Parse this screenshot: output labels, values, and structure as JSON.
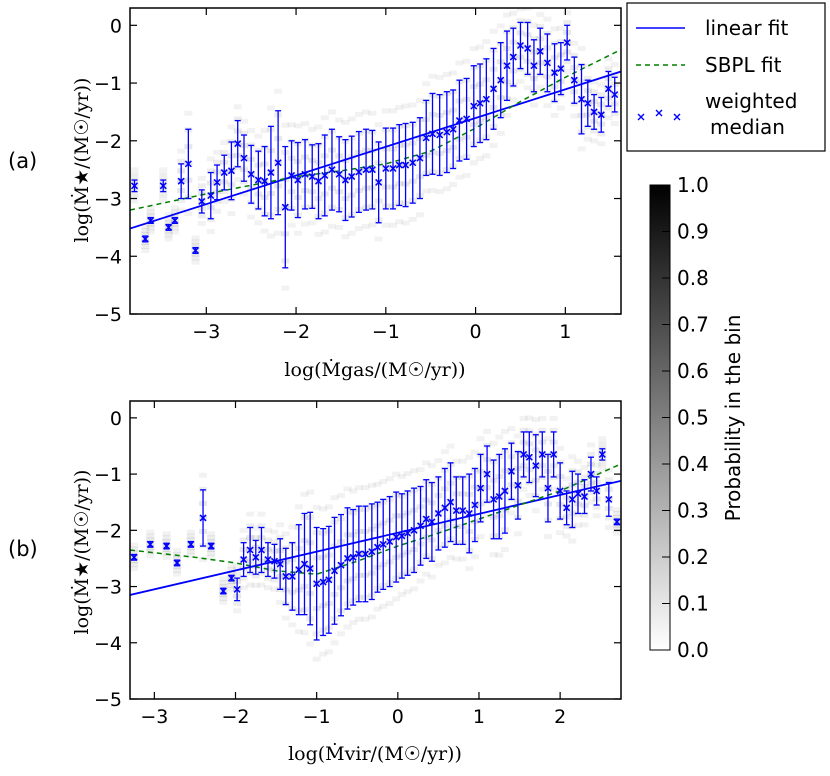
{
  "colors": {
    "fit": "#0000ff",
    "sbpl": "#008000",
    "median": "#0000ff",
    "frame": "#000000"
  },
  "legend": {
    "items": [
      {
        "label": "linear fit",
        "style": "solid"
      },
      {
        "label": "SBPL fit",
        "style": "dashed"
      },
      {
        "label_line1": "weighted",
        "label_line2": "median",
        "style": "markers"
      }
    ]
  },
  "colorbar": {
    "label": "Probability in the bin",
    "ticks": [
      "0.0",
      "0.1",
      "0.2",
      "0.3",
      "0.4",
      "0.5",
      "0.6",
      "0.7",
      "0.8",
      "0.9",
      "1.0"
    ],
    "range": [
      0,
      1
    ]
  },
  "chart_data": [
    {
      "panel_label": "(a)",
      "type": "scatter",
      "xlabel": "log(Ṁgas/(M☉/yr))",
      "ylabel": "log(Ṁ★/(M☉/yr))",
      "xlim": [
        -3.85,
        1.62
      ],
      "ylim": [
        -5,
        0.3
      ],
      "xticks": [
        -3,
        -2,
        -1,
        0,
        1
      ],
      "xtick_labels": [
        "−3",
        "−2",
        "−1",
        "0",
        "1"
      ],
      "yticks": [
        -5,
        -4,
        -3,
        -2,
        -1,
        0
      ],
      "ytick_labels": [
        "−5",
        "−4",
        "−3",
        "−2",
        "−1",
        "0"
      ],
      "linear_fit": {
        "x": [
          -3.85,
          1.62
        ],
        "y": [
          -3.52,
          -0.8
        ]
      },
      "sbpl_fit": {
        "x": [
          -3.85,
          -3.0,
          -2.0,
          -1.5,
          -1.0,
          -0.5,
          0.0,
          0.5,
          1.0,
          1.62
        ],
        "y": [
          -3.2,
          -2.92,
          -2.62,
          -2.52,
          -2.4,
          -2.18,
          -1.78,
          -1.32,
          -0.9,
          -0.42
        ]
      },
      "median": {
        "x": [
          -3.8,
          -3.68,
          -3.62,
          -3.48,
          -3.42,
          -3.35,
          -3.28,
          -3.2,
          -3.12,
          -3.05,
          -2.95,
          -2.88,
          -2.8,
          -2.72,
          -2.65,
          -2.58,
          -2.5,
          -2.42,
          -2.35,
          -2.28,
          -2.2,
          -2.12,
          -2.05,
          -1.98,
          -1.9,
          -1.82,
          -1.75,
          -1.68,
          -1.6,
          -1.52,
          -1.45,
          -1.38,
          -1.3,
          -1.22,
          -1.15,
          -1.08,
          -1.0,
          -0.92,
          -0.85,
          -0.78,
          -0.7,
          -0.62,
          -0.55,
          -0.48,
          -0.4,
          -0.32,
          -0.25,
          -0.18,
          -0.1,
          -0.02,
          0.05,
          0.12,
          0.2,
          0.28,
          0.35,
          0.42,
          0.5,
          0.58,
          0.65,
          0.72,
          0.8,
          0.88,
          0.95,
          1.02,
          1.1,
          1.18,
          1.25,
          1.32,
          1.4,
          1.48,
          1.55
        ],
        "y": [
          -2.78,
          -3.7,
          -3.38,
          -2.78,
          -3.5,
          -3.38,
          -2.7,
          -2.4,
          -3.9,
          -3.05,
          -2.95,
          -2.72,
          -2.55,
          -2.52,
          -2.05,
          -2.3,
          -2.58,
          -2.68,
          -2.7,
          -2.55,
          -2.38,
          -3.15,
          -2.6,
          -2.68,
          -2.58,
          -2.62,
          -2.7,
          -2.6,
          -2.5,
          -2.58,
          -2.68,
          -2.62,
          -2.54,
          -2.5,
          -2.5,
          -2.72,
          -2.48,
          -2.48,
          -2.42,
          -2.42,
          -2.38,
          -2.3,
          -1.95,
          -1.88,
          -1.9,
          -1.85,
          -1.8,
          -1.65,
          -1.62,
          -1.4,
          -1.35,
          -1.28,
          -1.1,
          -0.95,
          -0.7,
          -0.55,
          -0.35,
          -0.4,
          -0.7,
          -0.45,
          -0.65,
          -0.82,
          -0.75,
          -0.3,
          -0.95,
          -1.28,
          -1.35,
          -1.5,
          -1.55,
          -1.1,
          -1.2
        ],
        "err": [
          0.1,
          0.05,
          0.05,
          0.1,
          0.05,
          0.05,
          0.3,
          0.6,
          0.05,
          0.2,
          0.4,
          0.3,
          0.3,
          0.5,
          0.4,
          0.4,
          0.5,
          0.5,
          0.6,
          0.8,
          0.9,
          1.05,
          0.6,
          0.65,
          0.6,
          0.55,
          0.65,
          0.7,
          0.7,
          0.65,
          0.7,
          0.7,
          0.7,
          0.7,
          0.68,
          0.7,
          0.7,
          0.7,
          0.7,
          0.72,
          0.7,
          0.7,
          0.65,
          0.7,
          0.7,
          0.7,
          0.68,
          0.7,
          0.7,
          0.7,
          0.68,
          0.7,
          0.7,
          0.65,
          0.6,
          0.5,
          0.4,
          0.45,
          0.45,
          0.4,
          0.5,
          0.5,
          0.45,
          0.3,
          0.4,
          0.6,
          0.4,
          0.3,
          0.3,
          0.3,
          0.3
        ]
      }
    },
    {
      "panel_label": "(b)",
      "type": "scatter",
      "xlabel": "log(Ṁvir/(M☉/yr))",
      "ylabel": "log(Ṁ★/(M☉/yr))",
      "xlim": [
        -3.3,
        2.75
      ],
      "ylim": [
        -5,
        0.3
      ],
      "xticks": [
        -3,
        -2,
        -1,
        0,
        1,
        2
      ],
      "xtick_labels": [
        "−3",
        "−2",
        "−1",
        "0",
        "1",
        "2"
      ],
      "yticks": [
        -5,
        -4,
        -3,
        -2,
        -1,
        0
      ],
      "ytick_labels": [
        "−5",
        "−4",
        "−3",
        "−2",
        "−1",
        "0"
      ],
      "linear_fit": {
        "x": [
          -3.3,
          2.75
        ],
        "y": [
          -3.15,
          -1.12
        ]
      },
      "sbpl_fit": {
        "x": [
          -3.3,
          -2.5,
          -2.0,
          -1.5,
          -1.0,
          -0.5,
          0.0,
          0.5,
          1.0,
          1.5,
          2.0,
          2.75
        ],
        "y": [
          -2.35,
          -2.48,
          -2.58,
          -2.72,
          -2.78,
          -2.55,
          -2.28,
          -2.05,
          -1.8,
          -1.55,
          -1.3,
          -0.82
        ]
      },
      "median": {
        "x": [
          -3.25,
          -3.05,
          -2.85,
          -2.72,
          -2.55,
          -2.4,
          -2.3,
          -2.15,
          -2.05,
          -1.98,
          -1.9,
          -1.82,
          -1.75,
          -1.68,
          -1.6,
          -1.52,
          -1.45,
          -1.38,
          -1.3,
          -1.22,
          -1.15,
          -1.08,
          -1.0,
          -0.92,
          -0.85,
          -0.78,
          -0.7,
          -0.62,
          -0.55,
          -0.48,
          -0.4,
          -0.32,
          -0.25,
          -0.18,
          -0.1,
          -0.02,
          0.05,
          0.12,
          0.2,
          0.28,
          0.35,
          0.42,
          0.5,
          0.58,
          0.65,
          0.72,
          0.8,
          0.88,
          0.95,
          1.02,
          1.1,
          1.18,
          1.25,
          1.32,
          1.4,
          1.48,
          1.55,
          1.62,
          1.7,
          1.78,
          1.85,
          1.92,
          2.0,
          2.08,
          2.15,
          2.22,
          2.3,
          2.38,
          2.45,
          2.52,
          2.6,
          2.7
        ],
        "y": [
          -2.48,
          -2.25,
          -2.28,
          -2.58,
          -2.25,
          -1.78,
          -2.28,
          -3.08,
          -2.85,
          -3.05,
          -2.52,
          -2.35,
          -2.48,
          -2.35,
          -2.52,
          -2.55,
          -2.6,
          -2.82,
          -2.82,
          -2.7,
          -2.6,
          -2.68,
          -2.95,
          -2.92,
          -2.88,
          -2.72,
          -2.62,
          -2.5,
          -2.48,
          -2.42,
          -2.42,
          -2.38,
          -2.3,
          -2.25,
          -2.2,
          -2.12,
          -2.1,
          -2.05,
          -2.0,
          -1.92,
          -1.8,
          -1.85,
          -1.7,
          -1.6,
          -1.5,
          -1.65,
          -1.65,
          -1.7,
          -1.55,
          -1.25,
          -1.0,
          -1.45,
          -1.4,
          -1.3,
          -0.95,
          -1.2,
          -0.65,
          -0.7,
          -0.85,
          -0.65,
          -1.25,
          -0.65,
          -1.3,
          -1.6,
          -1.45,
          -1.35,
          -1.4,
          -1.0,
          -1.3,
          -0.65,
          -1.45,
          -1.85
        ],
        "err": [
          0.05,
          0.05,
          0.05,
          0.05,
          0.05,
          0.5,
          0.05,
          0.05,
          0.05,
          0.2,
          0.3,
          0.4,
          0.3,
          0.4,
          0.3,
          0.3,
          0.45,
          0.5,
          0.6,
          0.8,
          0.9,
          1.0,
          1.0,
          0.95,
          0.95,
          0.95,
          0.9,
          0.9,
          0.85,
          0.85,
          0.85,
          0.85,
          0.8,
          0.8,
          0.8,
          0.8,
          0.75,
          0.75,
          0.75,
          0.7,
          0.7,
          0.7,
          0.65,
          0.7,
          0.7,
          0.6,
          0.6,
          0.7,
          0.65,
          0.6,
          0.5,
          0.7,
          0.75,
          0.75,
          0.5,
          0.6,
          0.4,
          0.45,
          0.55,
          0.4,
          0.6,
          0.4,
          0.5,
          0.3,
          0.5,
          0.35,
          0.3,
          0.3,
          0.25,
          0.1,
          0.3,
          0.05
        ]
      }
    }
  ]
}
